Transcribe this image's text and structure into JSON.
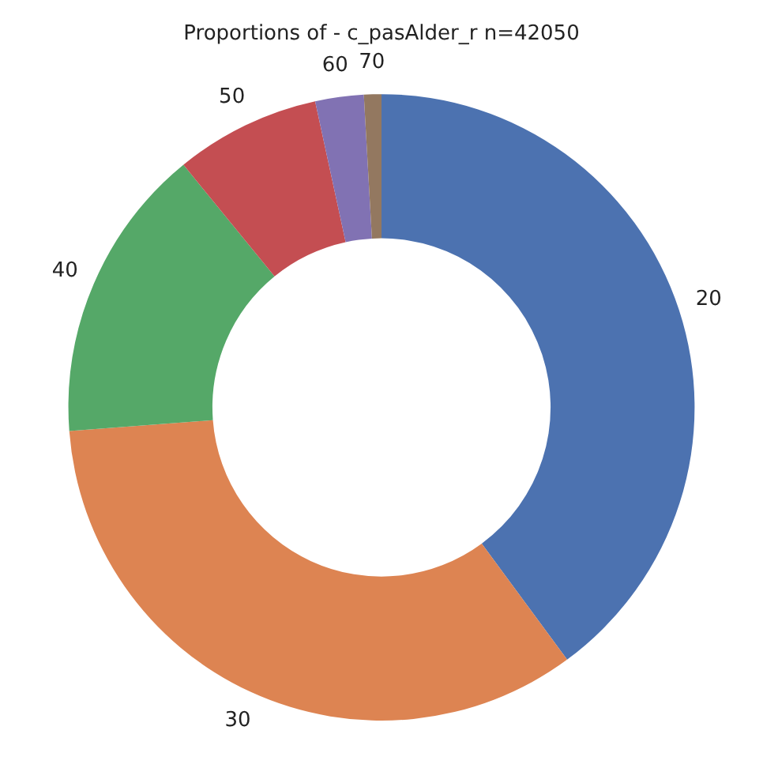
{
  "chart_data": {
    "type": "donut",
    "title": "Proportions of - c_pasAlder_r n=42050",
    "categories": [
      "20",
      "30",
      "40",
      "50",
      "60",
      "70"
    ],
    "values": [
      39.9,
      33.9,
      15.3,
      7.5,
      2.5,
      0.9
    ],
    "colors": [
      "#4c72b0",
      "#dd8452",
      "#55a868",
      "#c44e52",
      "#8172b3",
      "#937860"
    ],
    "legend": false
  }
}
